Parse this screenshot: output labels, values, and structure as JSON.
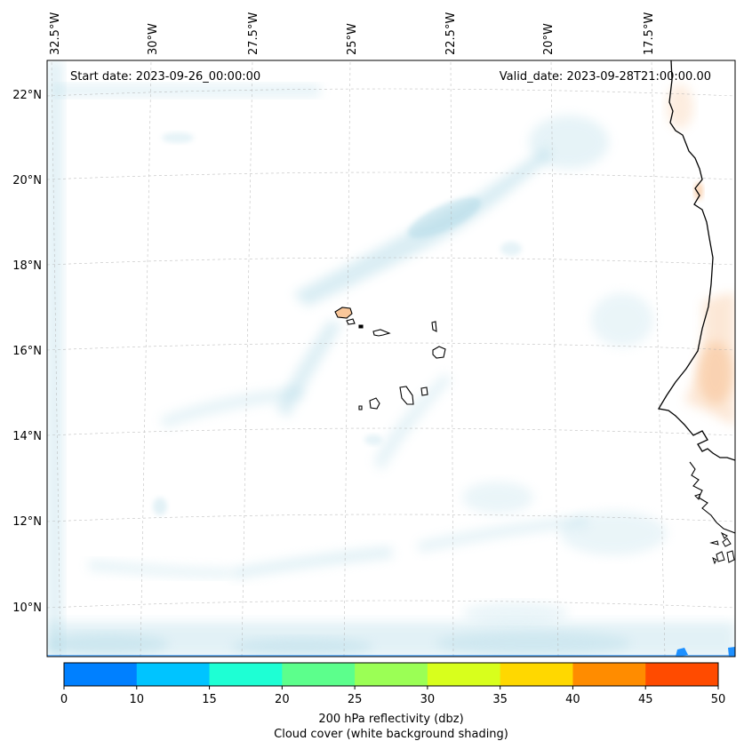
{
  "map": {
    "start_date": "Start date: 2023-09-26_00:00:00",
    "valid_date": "Valid_date: 2023-09-28T21:00:00.00",
    "lon_labels": [
      "32.5°W",
      "30°W",
      "27.5°W",
      "25°W",
      "22.5°W",
      "20°W",
      "17.5°W"
    ],
    "lat_labels": [
      "22°N",
      "20°N",
      "18°N",
      "16°N",
      "14°N",
      "12°N",
      "10°N"
    ],
    "colors": {
      "cloud": "#add8e6",
      "land_warm": "#f4a460",
      "coast": "#000000",
      "grid": "#b0b0b0"
    }
  },
  "colorbar": {
    "ticks": [
      "0",
      "10",
      "15",
      "20",
      "25",
      "30",
      "35",
      "40",
      "45",
      "50"
    ],
    "colors": [
      "#0080ff",
      "#00c4ff",
      "#1effd4",
      "#5cff8c",
      "#9bff55",
      "#d8ff1c",
      "#ffd800",
      "#ff8c00",
      "#ff4b00"
    ],
    "label_line1": "200 hPa reflectivity (dbz)",
    "label_line2": "Cloud cover (white background shading)"
  }
}
